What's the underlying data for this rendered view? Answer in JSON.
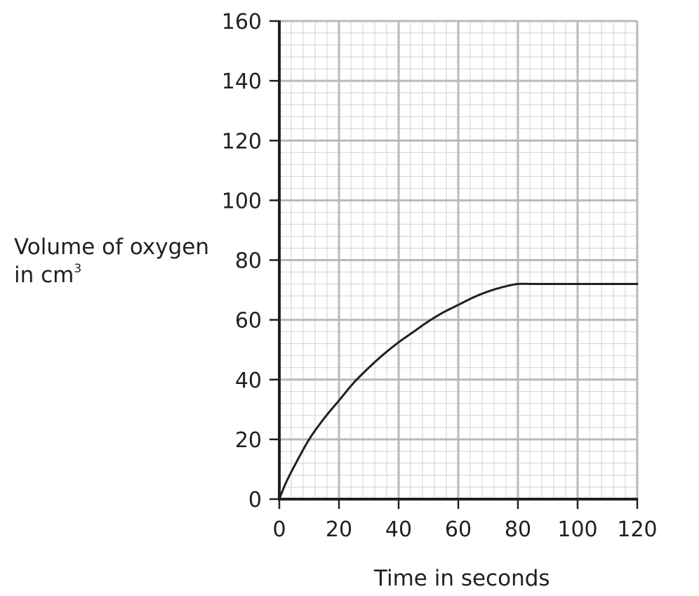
{
  "chart_data": {
    "type": "line",
    "title": "",
    "xlabel": "Time in seconds",
    "ylabel": {
      "line1": "Volume of oxygen",
      "line2": "in cm",
      "superscript": "3"
    },
    "xlim": [
      0,
      120
    ],
    "ylim": [
      0,
      160
    ],
    "x_ticks": [
      "0",
      "20",
      "40",
      "60",
      "80",
      "100",
      "120"
    ],
    "y_ticks": [
      "0",
      "20",
      "40",
      "60",
      "80",
      "100",
      "120",
      "140",
      "160"
    ],
    "grid": true,
    "series": [
      {
        "x": [
          0,
          2,
          5,
          10,
          15,
          20,
          25,
          30,
          35,
          40,
          45,
          50,
          55,
          60,
          65,
          70,
          75,
          80,
          85,
          90,
          100,
          110,
          120
        ],
        "y": [
          0,
          5,
          11,
          20,
          27,
          33,
          39,
          44,
          48.5,
          52.5,
          56,
          59.5,
          62.5,
          65,
          67.5,
          69.5,
          71,
          72,
          72,
          72,
          72,
          72,
          72
        ]
      }
    ]
  },
  "colors": {
    "axis": "#231f20",
    "curve": "#231f20",
    "grid_major": "#b9b9b9",
    "grid_minor": "#d2d2d2"
  }
}
